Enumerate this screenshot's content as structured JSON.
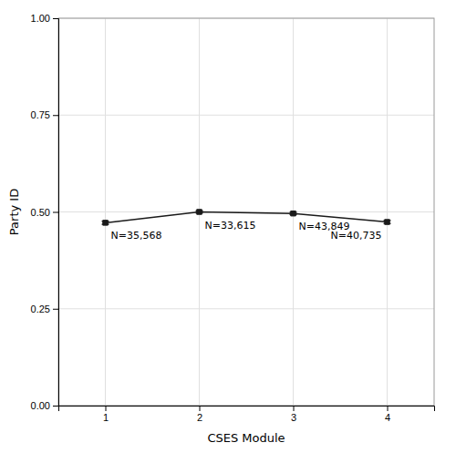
{
  "chart_data": {
    "type": "line",
    "x": [
      1,
      2,
      3,
      4
    ],
    "values": [
      0.472,
      0.5,
      0.496,
      0.474
    ],
    "yerr": [
      0.004,
      0.003,
      0.003,
      0.004
    ],
    "annotations": [
      "N=35,568",
      "N=33,615",
      "N=43,849",
      "N=40,735"
    ],
    "xlabel": "CSES Module",
    "ylabel": "Party ID",
    "xlim": [
      0.5,
      4.5
    ],
    "ylim": [
      0.0,
      1.0
    ],
    "xticks": [
      1,
      2,
      3,
      4
    ],
    "yticks": [
      {
        "value": 0.0,
        "label": "0.00"
      },
      {
        "value": 0.25,
        "label": "0.25"
      },
      {
        "value": 0.5,
        "label": "0.50"
      },
      {
        "value": 0.75,
        "label": "0.75"
      },
      {
        "value": 1.0,
        "label": "1.00"
      }
    ],
    "color": "#1a1a1a",
    "marker": "square",
    "grid": true
  }
}
